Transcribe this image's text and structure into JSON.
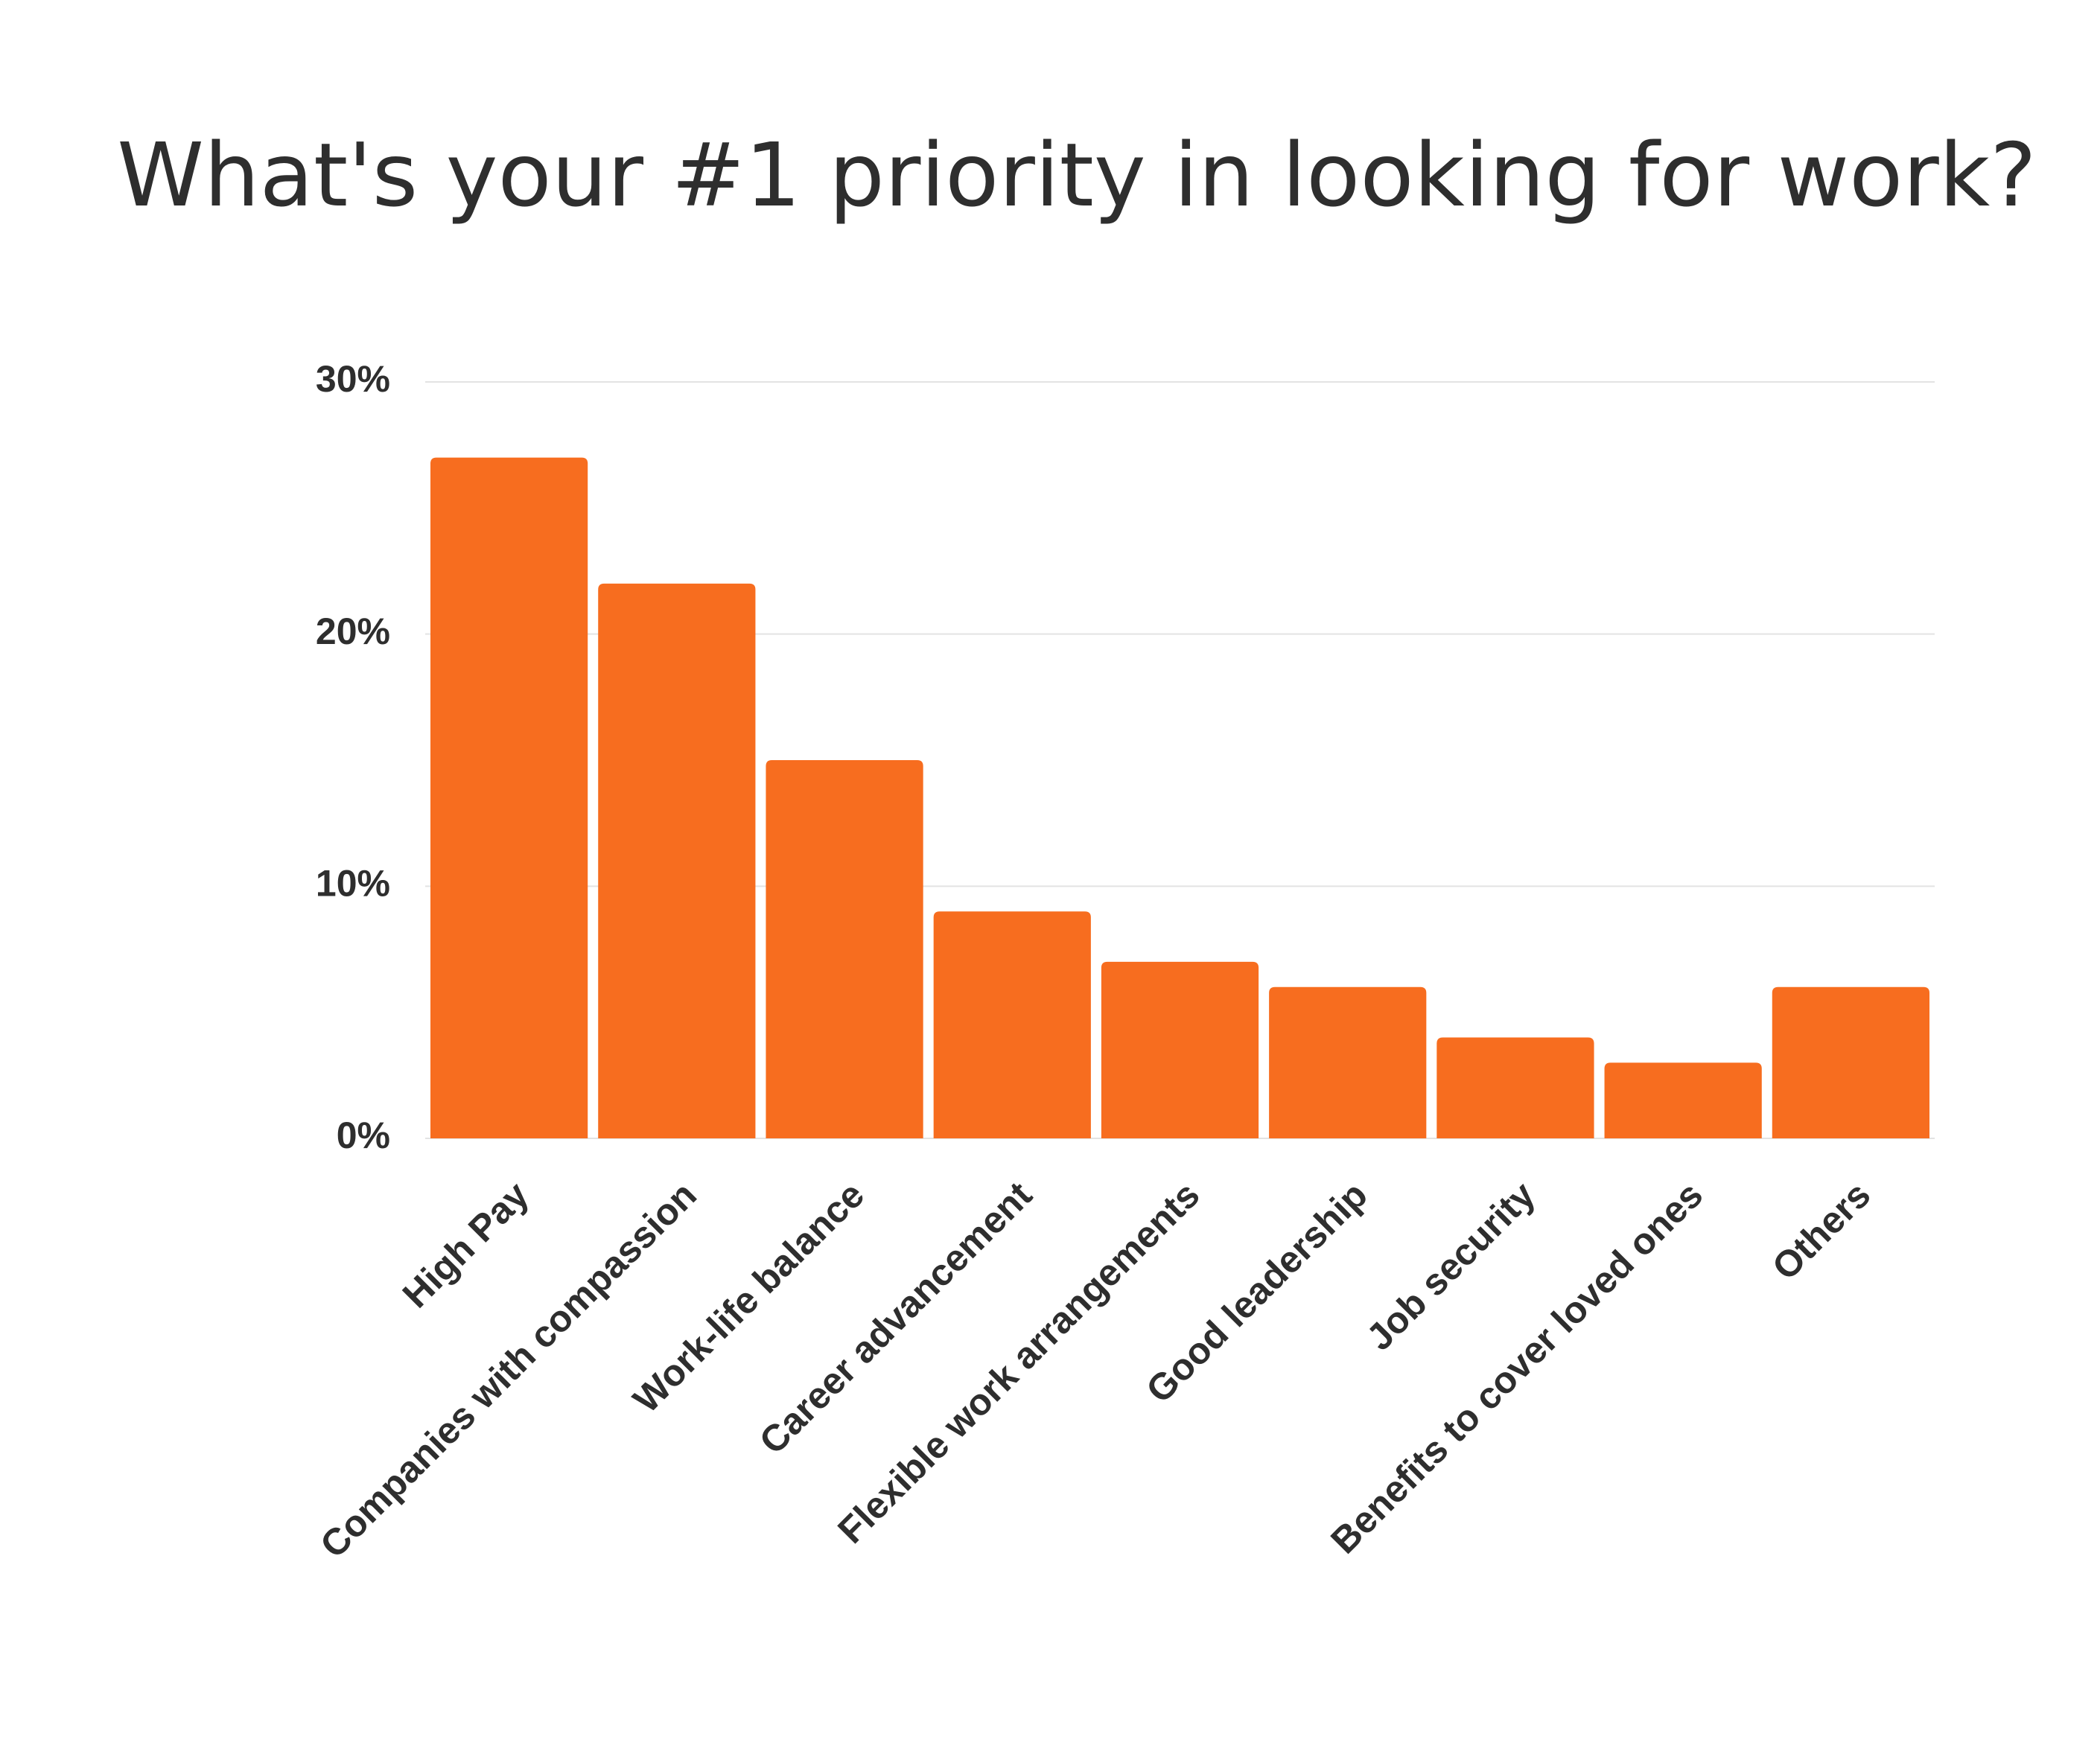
{
  "chart_data": {
    "type": "bar",
    "title": "What's your #1 priority in looking for work?",
    "categories": [
      "High Pay",
      "Companies with compassion",
      "Work-life balance",
      "Career advancement",
      "Flexible work arrangements",
      "Good leadership",
      "Job security",
      "Benefits to cover loved ones",
      "Others"
    ],
    "values": [
      27,
      22,
      15,
      9,
      7,
      6,
      4,
      3,
      6
    ],
    "color": "#f76d1f",
    "ylim": [
      0,
      30
    ],
    "yticks": [
      {
        "value": 0,
        "label": "0%"
      },
      {
        "value": 10,
        "label": "10%"
      },
      {
        "value": 20,
        "label": "20%"
      },
      {
        "value": 30,
        "label": "30%"
      }
    ],
    "grid": true
  }
}
